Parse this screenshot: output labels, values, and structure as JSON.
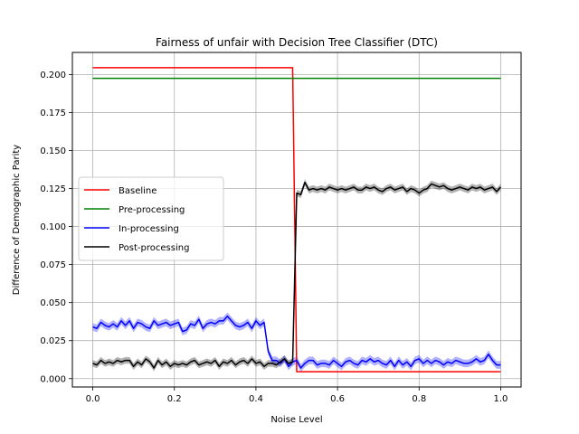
{
  "chart_data": {
    "type": "line",
    "title": "Fairness of unfair with Decision Tree Classifier (DTC)",
    "xlabel": "Noise Level",
    "ylabel": "Difference of Demographic Parity",
    "xlim": [
      -0.05,
      1.05
    ],
    "ylim": [
      -0.0055,
      0.2145
    ],
    "xticks": [
      0.0,
      0.2,
      0.4,
      0.6,
      0.8,
      1.0
    ],
    "xtick_labels": [
      "0.0",
      "0.2",
      "0.4",
      "0.6",
      "0.8",
      "1.0"
    ],
    "yticks": [
      0.0,
      0.025,
      0.05,
      0.075,
      0.1,
      0.125,
      0.15,
      0.175,
      0.2
    ],
    "ytick_labels": [
      "0.000",
      "0.025",
      "0.050",
      "0.075",
      "0.100",
      "0.125",
      "0.150",
      "0.175",
      "0.200"
    ],
    "grid": true,
    "legend_position": "center-left",
    "series": [
      {
        "name": "Baseline",
        "color": "#ff0000",
        "band": false,
        "x": [
          0.0,
          0.49,
          0.5,
          1.0
        ],
        "y": [
          0.2045,
          0.2045,
          0.0045,
          0.0045
        ]
      },
      {
        "name": "Pre-processing",
        "color": "#008000",
        "band": false,
        "x": [
          0.0,
          1.0
        ],
        "y": [
          0.1975,
          0.1975
        ]
      },
      {
        "name": "In-processing",
        "color": "#0000ff",
        "band": true,
        "x": [
          0.0,
          0.01,
          0.02,
          0.03,
          0.04,
          0.05,
          0.06,
          0.07,
          0.08,
          0.09,
          0.1,
          0.11,
          0.12,
          0.13,
          0.14,
          0.15,
          0.16,
          0.17,
          0.18,
          0.19,
          0.2,
          0.21,
          0.22,
          0.23,
          0.24,
          0.25,
          0.26,
          0.27,
          0.28,
          0.29,
          0.3,
          0.31,
          0.32,
          0.33,
          0.34,
          0.35,
          0.36,
          0.37,
          0.38,
          0.39,
          0.4,
          0.41,
          0.42,
          0.43,
          0.44,
          0.45,
          0.46,
          0.47,
          0.48,
          0.49,
          0.5,
          0.51,
          0.52,
          0.53,
          0.54,
          0.55,
          0.56,
          0.57,
          0.58,
          0.59,
          0.6,
          0.61,
          0.62,
          0.63,
          0.64,
          0.65,
          0.66,
          0.67,
          0.68,
          0.69,
          0.7,
          0.71,
          0.72,
          0.73,
          0.74,
          0.75,
          0.76,
          0.77,
          0.78,
          0.79,
          0.8,
          0.81,
          0.82,
          0.83,
          0.84,
          0.85,
          0.86,
          0.87,
          0.88,
          0.89,
          0.9,
          0.91,
          0.92,
          0.93,
          0.94,
          0.95,
          0.96,
          0.97,
          0.98,
          0.99,
          1.0
        ],
        "y": [
          0.034,
          0.033,
          0.037,
          0.035,
          0.034,
          0.036,
          0.034,
          0.038,
          0.035,
          0.038,
          0.033,
          0.037,
          0.036,
          0.034,
          0.033,
          0.038,
          0.035,
          0.036,
          0.037,
          0.035,
          0.036,
          0.037,
          0.031,
          0.032,
          0.036,
          0.035,
          0.039,
          0.033,
          0.036,
          0.037,
          0.036,
          0.038,
          0.038,
          0.041,
          0.038,
          0.035,
          0.034,
          0.035,
          0.037,
          0.033,
          0.038,
          0.035,
          0.037,
          0.018,
          0.012,
          0.012,
          0.01,
          0.013,
          0.008,
          0.011,
          0.012,
          0.007,
          0.01,
          0.012,
          0.012,
          0.009,
          0.01,
          0.01,
          0.009,
          0.012,
          0.01,
          0.008,
          0.011,
          0.012,
          0.01,
          0.009,
          0.012,
          0.011,
          0.013,
          0.011,
          0.012,
          0.01,
          0.009,
          0.012,
          0.008,
          0.012,
          0.009,
          0.011,
          0.008,
          0.012,
          0.013,
          0.01,
          0.012,
          0.01,
          0.012,
          0.011,
          0.009,
          0.011,
          0.01,
          0.012,
          0.011,
          0.01,
          0.01,
          0.011,
          0.013,
          0.011,
          0.012,
          0.016,
          0.012,
          0.009,
          0.009
        ],
        "band_width": 0.0025
      },
      {
        "name": "Post-processing",
        "color": "#000000",
        "band": true,
        "x": [
          0.0,
          0.01,
          0.02,
          0.03,
          0.04,
          0.05,
          0.06,
          0.07,
          0.08,
          0.09,
          0.1,
          0.11,
          0.12,
          0.13,
          0.14,
          0.15,
          0.16,
          0.17,
          0.18,
          0.19,
          0.2,
          0.21,
          0.22,
          0.23,
          0.24,
          0.25,
          0.26,
          0.27,
          0.28,
          0.29,
          0.3,
          0.31,
          0.32,
          0.33,
          0.34,
          0.35,
          0.36,
          0.37,
          0.38,
          0.39,
          0.4,
          0.41,
          0.42,
          0.43,
          0.44,
          0.45,
          0.46,
          0.47,
          0.48,
          0.49,
          0.5,
          0.51,
          0.52,
          0.53,
          0.54,
          0.55,
          0.56,
          0.57,
          0.58,
          0.59,
          0.6,
          0.61,
          0.62,
          0.63,
          0.64,
          0.65,
          0.66,
          0.67,
          0.68,
          0.69,
          0.7,
          0.71,
          0.72,
          0.73,
          0.74,
          0.75,
          0.76,
          0.77,
          0.78,
          0.79,
          0.8,
          0.81,
          0.82,
          0.83,
          0.84,
          0.85,
          0.86,
          0.87,
          0.88,
          0.89,
          0.9,
          0.91,
          0.92,
          0.93,
          0.94,
          0.95,
          0.96,
          0.97,
          0.98,
          0.99,
          1.0
        ],
        "y": [
          0.01,
          0.009,
          0.012,
          0.01,
          0.011,
          0.01,
          0.012,
          0.011,
          0.012,
          0.012,
          0.008,
          0.011,
          0.009,
          0.013,
          0.011,
          0.007,
          0.012,
          0.009,
          0.011,
          0.008,
          0.01,
          0.009,
          0.01,
          0.009,
          0.011,
          0.012,
          0.009,
          0.01,
          0.011,
          0.01,
          0.012,
          0.008,
          0.011,
          0.01,
          0.012,
          0.009,
          0.011,
          0.012,
          0.01,
          0.013,
          0.01,
          0.011,
          0.008,
          0.01,
          0.01,
          0.009,
          0.011,
          0.013,
          0.01,
          0.011,
          0.122,
          0.121,
          0.129,
          0.124,
          0.125,
          0.124,
          0.125,
          0.124,
          0.126,
          0.125,
          0.124,
          0.125,
          0.124,
          0.125,
          0.126,
          0.124,
          0.124,
          0.126,
          0.125,
          0.126,
          0.124,
          0.123,
          0.125,
          0.126,
          0.124,
          0.125,
          0.126,
          0.123,
          0.125,
          0.124,
          0.122,
          0.124,
          0.125,
          0.128,
          0.127,
          0.126,
          0.127,
          0.125,
          0.124,
          0.125,
          0.126,
          0.125,
          0.124,
          0.126,
          0.125,
          0.126,
          0.124,
          0.125,
          0.126,
          0.123,
          0.126
        ],
        "band_width": 0.0022
      }
    ]
  }
}
